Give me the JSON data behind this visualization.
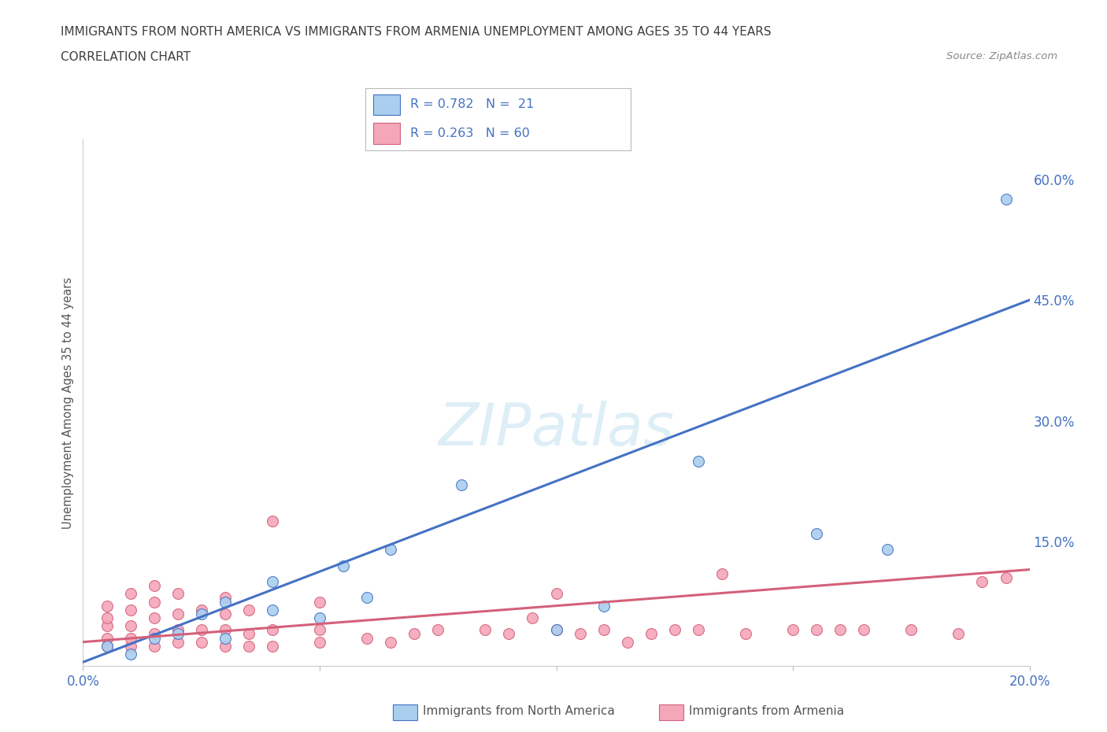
{
  "title_line1": "IMMIGRANTS FROM NORTH AMERICA VS IMMIGRANTS FROM ARMENIA UNEMPLOYMENT AMONG AGES 35 TO 44 YEARS",
  "title_line2": "CORRELATION CHART",
  "source": "Source: ZipAtlas.com",
  "ylabel": "Unemployment Among Ages 35 to 44 years",
  "x_ticks": [
    0.0,
    0.05,
    0.1,
    0.15,
    0.2
  ],
  "x_tick_labels": [
    "0.0%",
    "",
    "",
    "",
    "20.0%"
  ],
  "y_ticks": [
    0.0,
    0.15,
    0.3,
    0.45,
    0.6
  ],
  "y_tick_labels": [
    "",
    "15.0%",
    "30.0%",
    "45.0%",
    "60.0%"
  ],
  "xlim": [
    0.0,
    0.2
  ],
  "ylim": [
    -0.005,
    0.65
  ],
  "north_america_color": "#aacfee",
  "north_america_line_color": "#4472c4",
  "armenia_color": "#f4a7b9",
  "armenia_line_color": "#d4607a",
  "north_america_x": [
    0.005,
    0.01,
    0.015,
    0.02,
    0.025,
    0.03,
    0.03,
    0.04,
    0.04,
    0.05,
    0.055,
    0.06,
    0.065,
    0.08,
    0.1,
    0.11,
    0.13,
    0.155,
    0.17,
    0.195
  ],
  "north_america_y": [
    0.02,
    0.01,
    0.03,
    0.035,
    0.06,
    0.03,
    0.075,
    0.065,
    0.1,
    0.055,
    0.12,
    0.08,
    0.14,
    0.22,
    0.04,
    0.07,
    0.25,
    0.16,
    0.14,
    0.575
  ],
  "armenia_x": [
    0.005,
    0.005,
    0.005,
    0.005,
    0.005,
    0.01,
    0.01,
    0.01,
    0.01,
    0.01,
    0.015,
    0.015,
    0.015,
    0.015,
    0.015,
    0.02,
    0.02,
    0.02,
    0.02,
    0.025,
    0.025,
    0.025,
    0.03,
    0.03,
    0.03,
    0.03,
    0.035,
    0.035,
    0.035,
    0.04,
    0.04,
    0.04,
    0.05,
    0.05,
    0.05,
    0.06,
    0.065,
    0.07,
    0.075,
    0.085,
    0.09,
    0.095,
    0.1,
    0.1,
    0.105,
    0.11,
    0.115,
    0.12,
    0.125,
    0.13,
    0.135,
    0.14,
    0.15,
    0.155,
    0.16,
    0.165,
    0.175,
    0.185,
    0.19,
    0.195
  ],
  "armenia_y": [
    0.02,
    0.03,
    0.045,
    0.055,
    0.07,
    0.02,
    0.03,
    0.045,
    0.065,
    0.085,
    0.02,
    0.035,
    0.055,
    0.075,
    0.095,
    0.025,
    0.04,
    0.06,
    0.085,
    0.025,
    0.04,
    0.065,
    0.02,
    0.04,
    0.06,
    0.08,
    0.02,
    0.035,
    0.065,
    0.02,
    0.04,
    0.175,
    0.025,
    0.04,
    0.075,
    0.03,
    0.025,
    0.035,
    0.04,
    0.04,
    0.035,
    0.055,
    0.04,
    0.085,
    0.035,
    0.04,
    0.025,
    0.035,
    0.04,
    0.04,
    0.11,
    0.035,
    0.04,
    0.04,
    0.04,
    0.04,
    0.04,
    0.035,
    0.1,
    0.105
  ],
  "na_line_x0": 0.0,
  "na_line_y0": 0.0,
  "na_line_x1": 0.2,
  "na_line_y1": 0.45,
  "arm_line_x0": 0.0,
  "arm_line_y0": 0.025,
  "arm_line_x1": 0.2,
  "arm_line_y1": 0.115,
  "watermark_text": "ZIPatlas",
  "background_color": "#ffffff",
  "grid_color": "#dddddd",
  "tick_color": "#4472c4",
  "title_color": "#3f3f3f",
  "legend_text_color": "#4472c4",
  "source_color": "#888888"
}
